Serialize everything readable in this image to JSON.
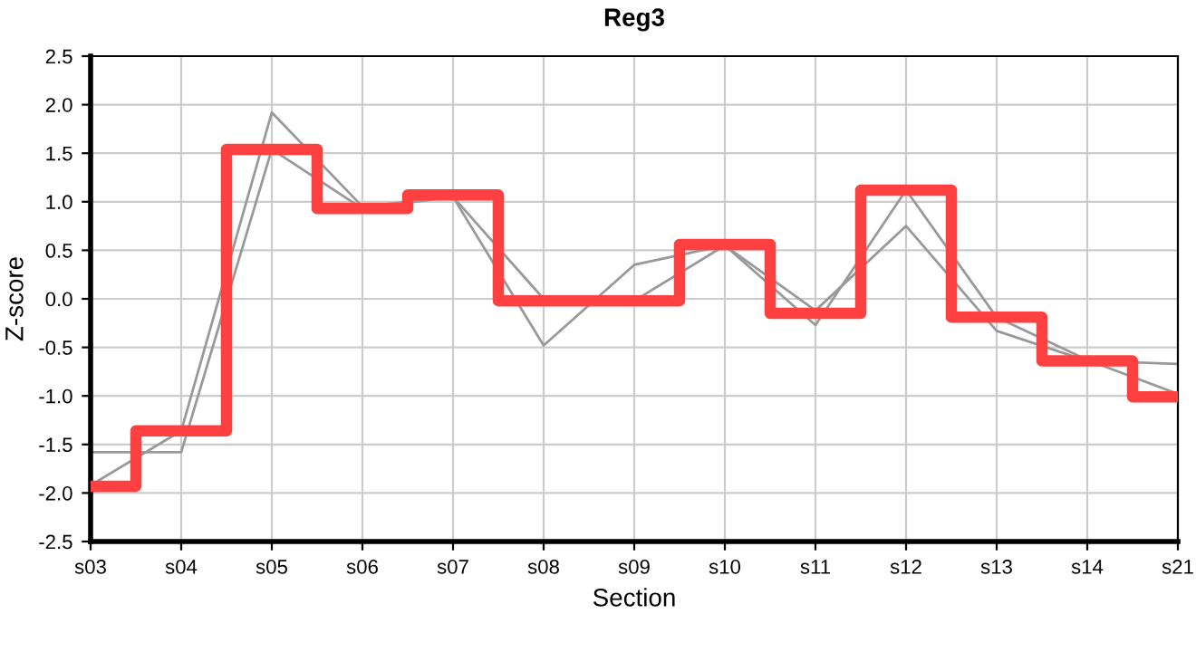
{
  "chart_data": {
    "type": "line",
    "title": "Reg3",
    "xlabel": "Section",
    "ylabel": "Z-score",
    "categories": [
      "s03",
      "s04",
      "s05",
      "s06",
      "s07",
      "s08",
      "s09",
      "s10",
      "s11",
      "s12",
      "s13",
      "s14",
      "s21"
    ],
    "series": [
      {
        "color": "#999999",
        "values": [
          -1.92,
          -1.36,
          1.92,
          0.95,
          1.05,
          -0.48,
          0.35,
          0.55,
          -0.27,
          1.12,
          -0.19,
          -0.63,
          -0.98
        ]
      },
      {
        "color": "#999999",
        "values": [
          -1.58,
          -1.58,
          1.54,
          0.93,
          1.05,
          0.0,
          -0.02,
          0.55,
          -0.12,
          0.75,
          -0.33,
          -0.64,
          -0.67
        ]
      },
      {
        "type": "step",
        "color": "#ff4040",
        "values": [
          -1.93,
          -1.36,
          1.54,
          0.93,
          1.07,
          -0.02,
          -0.02,
          0.56,
          -0.15,
          1.12,
          -0.19,
          -0.64,
          -1.01
        ]
      }
    ],
    "ylim": [
      -2.5,
      2.5
    ],
    "yticks": [
      {
        "value": -2.5,
        "label": "-2.5"
      },
      {
        "value": -2.0,
        "label": "-2.0"
      },
      {
        "value": -1.5,
        "label": "-1.5"
      },
      {
        "value": -1.0,
        "label": "-1.0"
      },
      {
        "value": -0.5,
        "label": "-0.5"
      },
      {
        "value": 0.0,
        "label": "0.0"
      },
      {
        "value": 0.5,
        "label": "0.5"
      },
      {
        "value": 1.0,
        "label": "1.0"
      },
      {
        "value": 1.5,
        "label": "1.5"
      },
      {
        "value": 2.0,
        "label": "2.0"
      },
      {
        "value": 2.5,
        "label": "2.5"
      }
    ],
    "grid": true,
    "legend": false
  }
}
